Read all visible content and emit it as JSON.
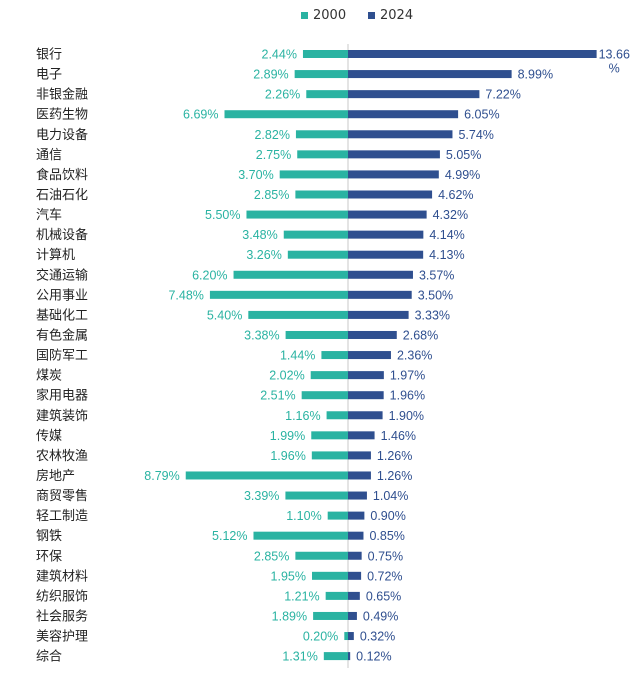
{
  "chart_data": {
    "type": "bar",
    "orientation": "diverging-horizontal",
    "categories": [
      "银行",
      "电子",
      "非银金融",
      "医药生物",
      "电力设备",
      "通信",
      "食品饮料",
      "石油石化",
      "汽车",
      "机械设备",
      "计算机",
      "交通运输",
      "公用事业",
      "基础化工",
      "有色金属",
      "国防军工",
      "煤炭",
      "家用电器",
      "建筑装饰",
      "传媒",
      "农林牧渔",
      "房地产",
      "商贸零售",
      "轻工制造",
      "钢铁",
      "环保",
      "建筑材料",
      "纺织服饰",
      "社会服务",
      "美容护理",
      "综合"
    ],
    "series": [
      {
        "name": "2000",
        "color": "#2ab3a2",
        "values": [
          2.44,
          2.89,
          2.26,
          6.69,
          2.82,
          2.75,
          3.7,
          2.85,
          5.5,
          3.48,
          3.26,
          6.2,
          7.48,
          5.4,
          3.38,
          1.44,
          2.02,
          2.51,
          1.16,
          1.99,
          1.96,
          8.79,
          3.39,
          1.1,
          5.12,
          2.85,
          1.95,
          1.21,
          1.89,
          0.2,
          1.31
        ],
        "labels": [
          "2.44%",
          "2.89%",
          "2.26%",
          "6.69%",
          "2.82%",
          "2.75%",
          "3.70%",
          "2.85%",
          "5.50%",
          "3.48%",
          "3.26%",
          "6.20%",
          "7.48%",
          "5.40%",
          "3.38%",
          "1.44%",
          "2.02%",
          "2.51%",
          "1.16%",
          "1.99%",
          "1.96%",
          "8.79%",
          "3.39%",
          "1.10%",
          "5.12%",
          "2.85%",
          "1.95%",
          "1.21%",
          "1.89%",
          "0.20%",
          "1.31%"
        ]
      },
      {
        "name": "2024",
        "color": "#2f4f8f",
        "values": [
          13.66,
          8.99,
          7.22,
          6.05,
          5.74,
          5.05,
          4.99,
          4.62,
          4.32,
          4.14,
          4.13,
          3.57,
          3.5,
          3.33,
          2.68,
          2.36,
          1.97,
          1.96,
          1.9,
          1.46,
          1.26,
          1.26,
          1.04,
          0.9,
          0.85,
          0.75,
          0.72,
          0.65,
          0.49,
          0.32,
          0.12
        ],
        "labels": [
          "13.66%",
          "8.99%",
          "7.22%",
          "6.05%",
          "5.74%",
          "5.05%",
          "4.99%",
          "4.62%",
          "4.32%",
          "4.14%",
          "4.13%",
          "3.57%",
          "3.50%",
          "3.33%",
          "2.68%",
          "2.36%",
          "1.97%",
          "1.96%",
          "1.90%",
          "1.46%",
          "1.26%",
          "1.26%",
          "1.04%",
          "0.90%",
          "0.85%",
          "0.75%",
          "0.72%",
          "0.65%",
          "0.49%",
          "0.32%",
          "0.12%"
        ]
      }
    ],
    "legend_position": "top",
    "grid": false,
    "title": "",
    "xlabel": "",
    "ylabel": ""
  }
}
